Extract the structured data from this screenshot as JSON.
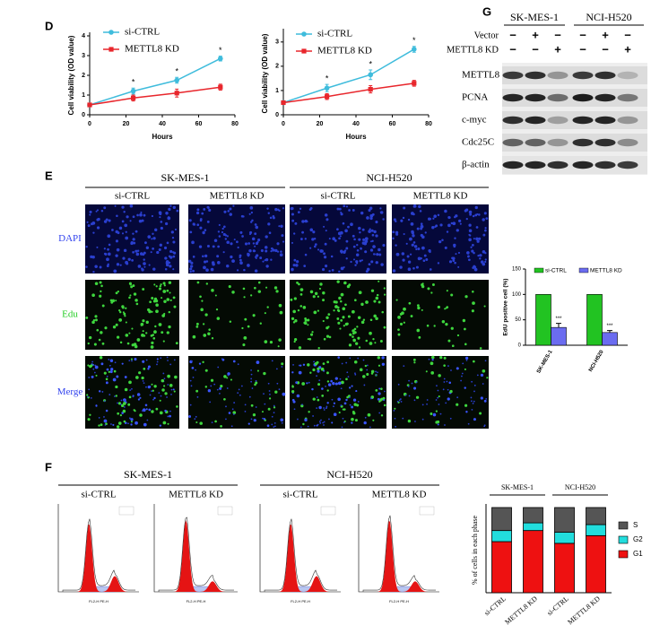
{
  "panels": {
    "d": "D",
    "e": "E",
    "f": "F",
    "g": "G"
  },
  "chart_data": [
    {
      "type": "line",
      "x": [
        0,
        24,
        48,
        72
      ],
      "xlim": [
        0,
        80
      ],
      "xticks": [
        0,
        20,
        40,
        60,
        80
      ],
      "ylim": [
        0,
        4
      ],
      "yticks": [
        0,
        1,
        2,
        3,
        4
      ],
      "xlabel": "Hours",
      "ylabel": "Cell viability (OD value)",
      "series": [
        {
          "name": "si-CTRL",
          "color": "#3fbcdc",
          "values": [
            0.5,
            1.2,
            1.75,
            2.85
          ],
          "errors": [
            0.05,
            0.15,
            0.15,
            0.12
          ]
        },
        {
          "name": "METTL8 KD",
          "color": "#e8262c",
          "values": [
            0.5,
            0.85,
            1.1,
            1.4
          ],
          "errors": [
            0.05,
            0.15,
            0.2,
            0.15
          ]
        }
      ],
      "annotations": [
        "*",
        "*",
        "*"
      ]
    },
    {
      "type": "line",
      "x": [
        0,
        24,
        48,
        72
      ],
      "xlim": [
        0,
        80
      ],
      "xticks": [
        0,
        20,
        40,
        60,
        80
      ],
      "ylim": [
        0,
        3.4
      ],
      "yticks": [
        0,
        1,
        2,
        3
      ],
      "xlabel": "Hours",
      "ylabel": "Cell viability (OD value)",
      "series": [
        {
          "name": "si-CTRL",
          "color": "#3fbcdc",
          "values": [
            0.5,
            1.1,
            1.65,
            2.7
          ],
          "errors": [
            0.05,
            0.15,
            0.2,
            0.12
          ]
        },
        {
          "name": "METTL8 KD",
          "color": "#e8262c",
          "values": [
            0.5,
            0.75,
            1.05,
            1.3
          ],
          "errors": [
            0.05,
            0.12,
            0.15,
            0.12
          ]
        }
      ],
      "annotations": [
        "*",
        "*",
        "*"
      ]
    },
    {
      "type": "bar",
      "categories": [
        "SK-MES-1",
        "NCI-H520"
      ],
      "ylim": [
        0,
        150
      ],
      "yticks": [
        0,
        50,
        100,
        150
      ],
      "ylabel": "EdU positive cell (%)",
      "series": [
        {
          "name": "si-CTRL",
          "color": "#22c322",
          "values": [
            100,
            100
          ],
          "errors": [
            0,
            0
          ]
        },
        {
          "name": "METTL8 KD",
          "color": "#6b6cf0",
          "values": [
            35,
            25
          ],
          "errors": [
            8,
            4
          ]
        }
      ],
      "annotations": [
        "***",
        "***"
      ]
    },
    {
      "type": "stacked",
      "groups": [
        "SK-MES-1",
        "NCI-H520"
      ],
      "categories": [
        "si-CTRL",
        "METTL8 KD",
        "si-CTRL",
        "METTL8 KD"
      ],
      "ylim": [
        0,
        100
      ],
      "ylabel": "% of cells in each phase",
      "series": [
        {
          "name": "G1",
          "color": "#ee1111",
          "values": [
            60,
            73,
            58,
            67
          ]
        },
        {
          "name": "G2",
          "color": "#22dddd",
          "values": [
            13,
            9,
            13,
            13
          ]
        },
        {
          "name": "S",
          "color": "#555555",
          "values": [
            27,
            18,
            29,
            20
          ]
        }
      ]
    }
  ],
  "edu": {
    "cell_lines": [
      "SK-MES-1",
      "NCI-H520"
    ],
    "columns": [
      "si-CTRL",
      "METTL8 KD",
      "si-CTRL",
      "METTL8 KD"
    ],
    "rows": [
      "DAPI",
      "Edu",
      "Merge"
    ]
  },
  "flow": {
    "cell_lines": [
      "SK-MES-1",
      "NCI-H520"
    ],
    "columns": [
      "si-CTRL",
      "METTL8 KD",
      "si-CTRL",
      "METTL8 KD"
    ],
    "xlabel": "FL2-H PE-H"
  },
  "blot": {
    "cell_lines": [
      "SK-MES-1",
      "NCI-H520"
    ],
    "conditions": [
      {
        "label": "Vector",
        "signs": [
          "−",
          "+",
          "−",
          "−",
          "+",
          "−"
        ]
      },
      {
        "label": "METTL8 KD",
        "signs": [
          "−",
          "−",
          "+",
          "−",
          "−",
          "+"
        ]
      }
    ],
    "proteins": [
      "METTL8",
      "PCNA",
      "c-myc",
      "Cdc25C",
      "β-actin"
    ]
  }
}
